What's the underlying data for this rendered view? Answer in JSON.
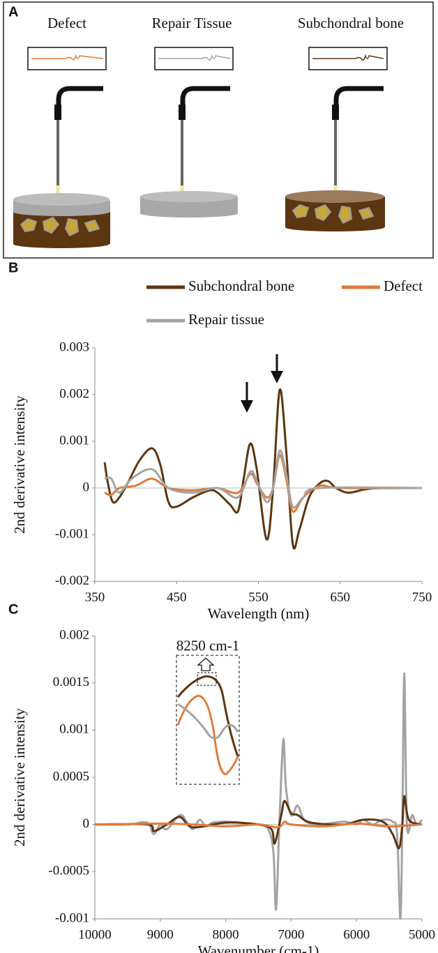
{
  "panel_a": {
    "letter": "A",
    "titles": [
      "Defect",
      "Repair Tissue",
      "Subchondral bone"
    ]
  },
  "chart_data": [
    {
      "type": "line",
      "letter": "B",
      "xlabel": "Wavelength (nm)",
      "ylabel": "2nd derivative intensity",
      "xlim": [
        350,
        750
      ],
      "xticks": [
        350,
        450,
        550,
        650,
        750
      ],
      "ylim": [
        -0.002,
        0.003
      ],
      "yticks": [
        -0.002,
        -0.001,
        0,
        0.001,
        0.002,
        0.003
      ],
      "series": [
        {
          "name": "Subchondral bone",
          "color": "#5c3511",
          "x": [
            362,
            366,
            372,
            380,
            390,
            405,
            420,
            430,
            440,
            450,
            470,
            490,
            500,
            515,
            525,
            532,
            540,
            548,
            560,
            568,
            576,
            584,
            592,
            600,
            612,
            625,
            635,
            645,
            660,
            680,
            700,
            750
          ],
          "values": [
            0.00055,
            0.0001,
            -0.0003,
            -0.0002,
            0.0001,
            0.0006,
            0.00085,
            0.0005,
            -0.0003,
            -0.0004,
            -0.0002,
            -5e-05,
            -0.0001,
            -0.00035,
            -0.0005,
            0.0002,
            0.00095,
            0.0004,
            -0.0011,
            0.0,
            0.0021,
            0.0008,
            -0.0012,
            -0.0009,
            -0.0002,
            0.0001,
            0.00015,
            0,
            -0.0001,
            -3e-05,
            0,
            0
          ]
        },
        {
          "name": "Defect",
          "color": "#e07b39",
          "x": [
            362,
            370,
            380,
            400,
            420,
            440,
            470,
            500,
            525,
            540,
            548,
            560,
            568,
            576,
            584,
            592,
            605,
            625,
            650,
            750
          ],
          "values": [
            -0.0001,
            -0.00015,
            0.0,
            5e-05,
            0.0002,
            0.0,
            -5e-05,
            0.0,
            -0.0001,
            0.0003,
            0.0001,
            -0.0002,
            0.0,
            0.0007,
            0.0002,
            -0.0005,
            -0.0002,
            5e-05,
            0,
            0
          ]
        },
        {
          "name": "Repair tissue",
          "color": "#a3a3a3",
          "x": [
            362,
            370,
            380,
            395,
            420,
            440,
            470,
            500,
            525,
            540,
            548,
            560,
            568,
            576,
            584,
            592,
            605,
            625,
            750
          ],
          "values": [
            0.0002,
            0.0002,
            -0.0001,
            0.0002,
            0.0004,
            0.0,
            -0.0001,
            0,
            -0.0002,
            0.00035,
            0.00015,
            -0.0003,
            0,
            0.0008,
            0.0003,
            -0.0004,
            -0.0002,
            0,
            0
          ]
        }
      ]
    },
    {
      "type": "line",
      "letter": "C",
      "xlabel": "Wavenumber (cm-1)",
      "ylabel": "2nd derivative intensity",
      "annotation": "8250 cm-1",
      "xlim": [
        10000,
        5000
      ],
      "xticks": [
        10000,
        9000,
        8000,
        7000,
        6000,
        5000
      ],
      "ylim": [
        -0.001,
        0.002
      ],
      "yticks": [
        -0.001,
        -0.0005,
        0,
        0.0005,
        0.001,
        0.0015,
        0.002
      ],
      "series": [
        {
          "color": "#a3a3a3",
          "x": [
            10000,
            9500,
            9200,
            9100,
            9000,
            8900,
            8700,
            8600,
            8500,
            8400,
            8300,
            8200,
            8000,
            7800,
            7500,
            7350,
            7270,
            7230,
            7180,
            7120,
            7080,
            7000,
            6900,
            6800,
            6600,
            6200,
            6000,
            5900,
            5750,
            5600,
            5450,
            5380,
            5330,
            5300,
            5270,
            5230,
            5150,
            5080,
            5000
          ],
          "values": [
            0,
            0,
            2e-05,
            -0.0001,
            0,
            -5e-05,
            0.0001,
            3e-05,
            -5e-05,
            5e-05,
            -2e-05,
            2e-05,
            3e-05,
            2e-05,
            0.0,
            -5e-05,
            -0.0003,
            -0.0009,
            0,
            0.0009,
            0.0004,
            0.0001,
            0.0002,
            5e-05,
            0.0,
            3e-05,
            0.0,
            5e-05,
            0.0,
            5e-05,
            3e-05,
            -0.0001,
            -0.001,
            0,
            0.0016,
            0.0,
            0.0001,
            0,
            5e-05
          ]
        },
        {
          "color": "#5c3511",
          "x": [
            10000,
            9200,
            9100,
            8900,
            8700,
            8500,
            8000,
            7500,
            7300,
            7250,
            7150,
            7100,
            7000,
            6900,
            6700,
            6200,
            5900,
            5600,
            5450,
            5350,
            5300,
            5270,
            5200,
            5000
          ],
          "values": [
            0,
            0,
            -7e-05,
            0,
            8e-05,
            -3e-05,
            2e-05,
            0,
            -5e-05,
            -0.0002,
            0.0001,
            0.00025,
            0.00012,
            0.0001,
            2e-05,
            0,
            5e-05,
            3e-05,
            -0.0001,
            -0.00025,
            0,
            0.0003,
            5e-05,
            0
          ]
        },
        {
          "color": "#e07b39",
          "x": [
            10000,
            9000,
            8500,
            8000,
            7500,
            7200,
            7100,
            7000,
            6500,
            6000,
            5500,
            5000
          ],
          "values": [
            0,
            1e-05,
            0,
            -2e-05,
            0,
            -3e-05,
            3e-05,
            0,
            -2e-05,
            1e-05,
            -2e-05,
            0
          ]
        }
      ]
    }
  ]
}
